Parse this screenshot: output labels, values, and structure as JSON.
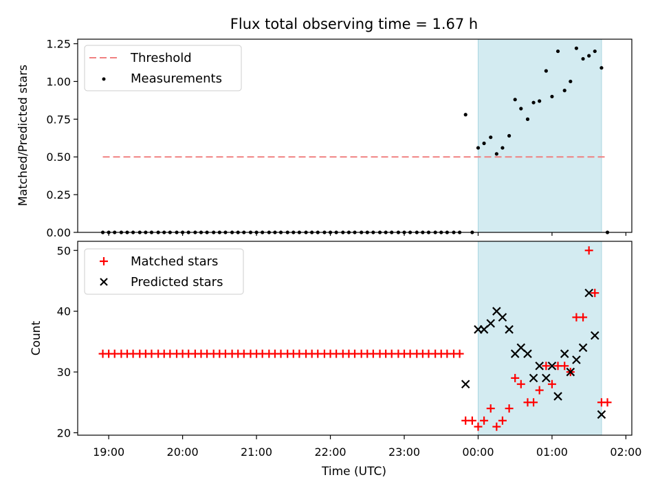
{
  "chart_data": {
    "title": "Flux total observing time = 1.67 h",
    "observing_window": {
      "start_hour": 24.0,
      "end_hour": 25.67,
      "color": "#d3ebf1"
    },
    "xlabel": "Time (UTC)",
    "x_ticks": [
      {
        "value": 19,
        "label": "19:00"
      },
      {
        "value": 20,
        "label": "20:00"
      },
      {
        "value": 21,
        "label": "21:00"
      },
      {
        "value": 22,
        "label": "22:00"
      },
      {
        "value": 23,
        "label": "23:00"
      },
      {
        "value": 24,
        "label": "00:00"
      },
      {
        "value": 25,
        "label": "01:00"
      },
      {
        "value": 26,
        "label": "02:00"
      }
    ],
    "xlim": [
      18.58,
      26.08
    ],
    "top": {
      "type": "scatter",
      "ylabel": "Matched/Predicted stars",
      "ylim": [
        0,
        1.28
      ],
      "y_ticks": [
        "0.00",
        "0.25",
        "0.50",
        "0.75",
        "1.00",
        "1.25"
      ],
      "y_tick_values": [
        0,
        0.25,
        0.5,
        0.75,
        1.0,
        1.25
      ],
      "threshold": {
        "name": "Threshold",
        "value": 0.5,
        "x_start": 18.92,
        "x_end": 25.75,
        "color": "#f08080"
      },
      "legend": [
        {
          "label": "Threshold",
          "kind": "dashed-line",
          "color": "#f08080"
        },
        {
          "label": "Measurements",
          "kind": "dot",
          "color": "#000000"
        }
      ],
      "measurements": {
        "name": "Measurements",
        "x": [
          18.92,
          19.0,
          19.08,
          19.17,
          19.25,
          19.33,
          19.42,
          19.5,
          19.58,
          19.67,
          19.75,
          19.83,
          19.92,
          20.0,
          20.08,
          20.17,
          20.25,
          20.33,
          20.42,
          20.5,
          20.58,
          20.67,
          20.75,
          20.83,
          20.92,
          21.0,
          21.08,
          21.17,
          21.25,
          21.33,
          21.42,
          21.5,
          21.58,
          21.67,
          21.75,
          21.83,
          21.92,
          22.0,
          22.08,
          22.17,
          22.25,
          22.33,
          22.42,
          22.5,
          22.58,
          22.67,
          22.75,
          22.83,
          22.92,
          23.0,
          23.08,
          23.17,
          23.25,
          23.33,
          23.42,
          23.5,
          23.58,
          23.67,
          23.75,
          23.83,
          23.92,
          24.0,
          24.08,
          24.17,
          24.25,
          24.33,
          24.42,
          24.5,
          24.58,
          24.67,
          24.75,
          24.83,
          24.92,
          25.0,
          25.08,
          25.17,
          25.25,
          25.33,
          25.42,
          25.5,
          25.58,
          25.67,
          25.75
        ],
        "y": [
          0,
          0,
          0,
          0,
          0,
          0,
          0,
          0,
          0,
          0,
          0,
          0,
          0,
          0,
          0,
          0,
          0,
          0,
          0,
          0,
          0,
          0,
          0,
          0,
          0,
          0,
          0,
          0,
          0,
          0,
          0,
          0,
          0,
          0,
          0,
          0,
          0,
          0,
          0,
          0,
          0,
          0,
          0,
          0,
          0,
          0,
          0,
          0,
          0,
          0,
          0,
          0,
          0,
          0,
          0,
          0,
          0,
          0,
          0,
          0.78,
          0,
          0.56,
          0.59,
          0.63,
          0.52,
          0.56,
          0.64,
          0.88,
          0.82,
          0.75,
          0.86,
          0.87,
          1.07,
          0.9,
          1.2,
          0.94,
          1.0,
          1.22,
          1.15,
          1.17,
          1.2,
          1.09,
          0
        ]
      }
    },
    "bottom": {
      "type": "scatter",
      "ylabel": "Count",
      "ylim": [
        19.6,
        51.5
      ],
      "y_ticks": [
        "20",
        "30",
        "40",
        "50"
      ],
      "y_tick_values": [
        20,
        30,
        40,
        50
      ],
      "legend": [
        {
          "label": "Matched stars",
          "kind": "plus",
          "color": "#ff0000"
        },
        {
          "label": "Predicted stars",
          "kind": "cross",
          "color": "#000000"
        }
      ],
      "matched": {
        "name": "Matched stars",
        "x": [
          18.92,
          19.0,
          19.08,
          19.17,
          19.25,
          19.33,
          19.42,
          19.5,
          19.58,
          19.67,
          19.75,
          19.83,
          19.92,
          20.0,
          20.08,
          20.17,
          20.25,
          20.33,
          20.42,
          20.5,
          20.58,
          20.67,
          20.75,
          20.83,
          20.92,
          21.0,
          21.08,
          21.17,
          21.25,
          21.33,
          21.42,
          21.5,
          21.58,
          21.67,
          21.75,
          21.83,
          21.92,
          22.0,
          22.08,
          22.17,
          22.25,
          22.33,
          22.42,
          22.5,
          22.58,
          22.67,
          22.75,
          22.83,
          22.92,
          23.0,
          23.08,
          23.17,
          23.25,
          23.33,
          23.42,
          23.5,
          23.58,
          23.67,
          23.75,
          23.83,
          23.92,
          24.0,
          24.08,
          24.17,
          24.25,
          24.33,
          24.42,
          24.5,
          24.58,
          24.67,
          24.75,
          24.83,
          24.92,
          25.0,
          25.08,
          25.17,
          25.25,
          25.33,
          25.42,
          25.5,
          25.58,
          25.67,
          25.75
        ],
        "y": [
          33,
          33,
          33,
          33,
          33,
          33,
          33,
          33,
          33,
          33,
          33,
          33,
          33,
          33,
          33,
          33,
          33,
          33,
          33,
          33,
          33,
          33,
          33,
          33,
          33,
          33,
          33,
          33,
          33,
          33,
          33,
          33,
          33,
          33,
          33,
          33,
          33,
          33,
          33,
          33,
          33,
          33,
          33,
          33,
          33,
          33,
          33,
          33,
          33,
          33,
          33,
          33,
          33,
          33,
          33,
          33,
          33,
          33,
          33,
          22,
          22,
          21,
          22,
          24,
          21,
          22,
          24,
          29,
          28,
          25,
          25,
          27,
          31,
          28,
          31,
          31,
          30,
          39,
          39,
          50,
          43,
          25,
          25
        ]
      },
      "predicted": {
        "name": "Predicted stars",
        "x": [
          23.83,
          24.0,
          24.08,
          24.17,
          24.25,
          24.33,
          24.42,
          24.5,
          24.58,
          24.67,
          24.75,
          24.83,
          24.92,
          25.0,
          25.08,
          25.17,
          25.25,
          25.33,
          25.42,
          25.5,
          25.58,
          25.67
        ],
        "y": [
          28,
          37,
          37,
          38,
          40,
          39,
          37,
          33,
          34,
          33,
          29,
          31,
          29,
          31,
          26,
          33,
          30,
          32,
          34,
          43,
          36,
          23
        ]
      }
    }
  }
}
